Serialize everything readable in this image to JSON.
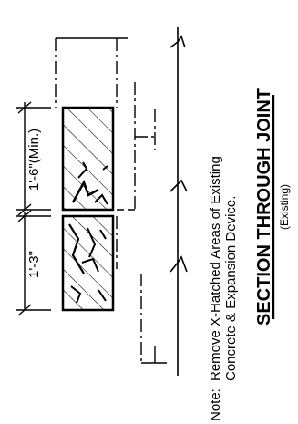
{
  "dimensions": {
    "top": "1'-6\"(Min.)",
    "bottom": "1'-3\""
  },
  "note": {
    "prefix": "Note:",
    "line1": "Remove X-Hatched Areas of Existing",
    "line2": "Concrete & Expansion  Device."
  },
  "title": "SECTION THROUGH JOINT",
  "subtitle": "(Existing)"
}
